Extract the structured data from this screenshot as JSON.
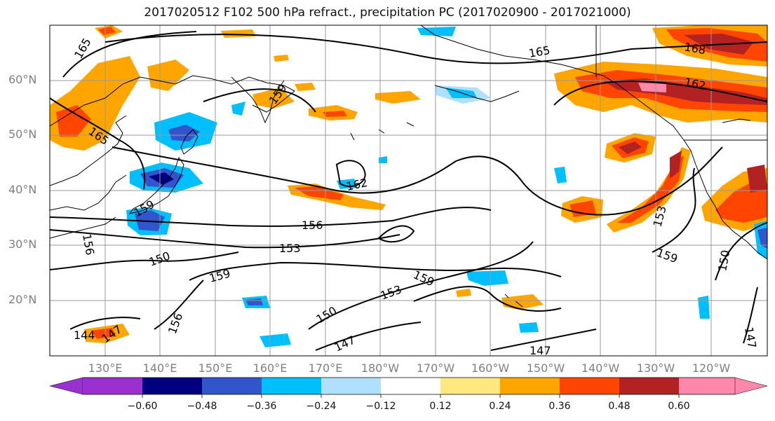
{
  "title": "2017020512 F102 500 hPa refract., precipitation PC (2017020900 - 2017021000)",
  "map": {
    "lat_labels": [
      "60°N",
      "50°N",
      "40°N",
      "30°N",
      "20°N"
    ],
    "lon_labels": [
      "130°E",
      "140°E",
      "150°E",
      "160°E",
      "170°E",
      "180°W",
      "170°W",
      "160°W",
      "150°W",
      "140°W",
      "130°W",
      "120°W"
    ],
    "contour_labels": [
      "165",
      "165",
      "165",
      "162",
      "162",
      "156",
      "153",
      "150",
      "159",
      "159",
      "159",
      "153",
      "150",
      "147",
      "147",
      "147",
      "144",
      "156",
      "156",
      "159",
      "153",
      "150",
      "147",
      "159",
      "168"
    ]
  },
  "colorbar": {
    "colors": [
      "#9b30d0",
      "#000080",
      "#3355cc",
      "#00bfff",
      "#b0e0ff",
      "#ffffff",
      "#ffe87f",
      "#ffa500",
      "#ff4500",
      "#b22222",
      "#ff88aa"
    ],
    "ticks": [
      "−0.60",
      "−0.48",
      "−0.36",
      "−0.24",
      "−0.12",
      "0.12",
      "0.24",
      "0.36",
      "0.48",
      "0.60"
    ]
  }
}
